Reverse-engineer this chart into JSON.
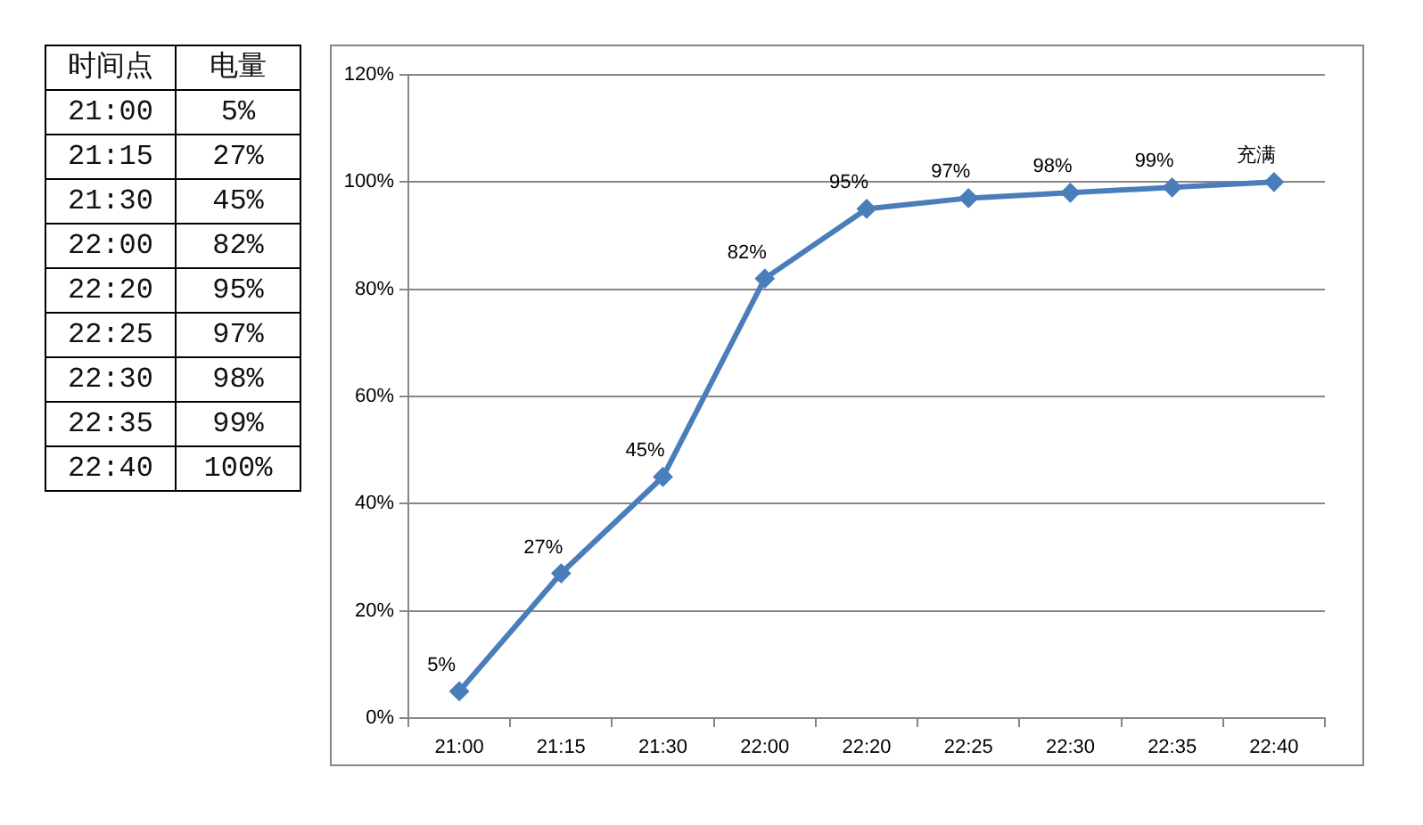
{
  "chart_data": [
    {
      "type": "heatmap",
      "ylabel": "时间点",
      "categories": [
        "电量"
      ],
      "y_categories": [
        "21:00",
        "21:15",
        "21:30",
        "22:00",
        "22:20",
        "22:25",
        "22:30",
        "22:35",
        "22:40"
      ],
      "cells": [
        [
          5
        ],
        [
          27
        ],
        [
          45
        ],
        [
          82
        ],
        [
          95
        ],
        [
          97
        ],
        [
          98
        ],
        [
          99
        ],
        [
          100
        ]
      ],
      "cell_labels": [
        [
          "5%"
        ],
        [
          "27%"
        ],
        [
          "45%"
        ],
        [
          "82%"
        ],
        [
          "95%"
        ],
        [
          "97%"
        ],
        [
          "98%"
        ],
        [
          "99%"
        ],
        [
          "100%"
        ]
      ]
    },
    {
      "type": "line",
      "categories": [
        "21:00",
        "21:15",
        "21:30",
        "22:00",
        "22:20",
        "22:25",
        "22:30",
        "22:35",
        "22:40"
      ],
      "values": [
        5,
        27,
        45,
        82,
        95,
        97,
        98,
        99,
        100
      ],
      "color": "#4a7ebb",
      "value_labels": [
        "5%",
        "27%",
        "45%",
        "82%",
        "95%",
        "97%",
        "98%",
        "99%",
        "充满"
      ],
      "ylim": [
        0,
        120
      ],
      "yticks": [
        {
          "value": 0,
          "label": "0%"
        },
        {
          "value": 20,
          "label": "20%"
        },
        {
          "value": 40,
          "label": "40%"
        },
        {
          "value": 60,
          "label": "60%"
        },
        {
          "value": 80,
          "label": "80%"
        },
        {
          "value": 100,
          "label": "100%"
        },
        {
          "value": 120,
          "label": "120%"
        }
      ],
      "grid": "y",
      "marker": "diamond",
      "line_style": "solid"
    }
  ]
}
